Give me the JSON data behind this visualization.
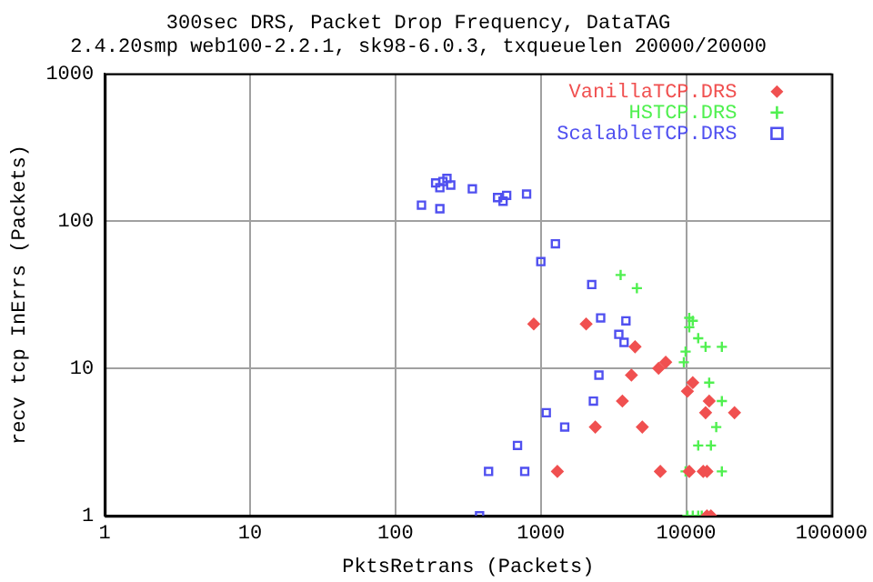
{
  "chart_data": {
    "type": "scatter",
    "title": "300sec DRS, Packet Drop Frequency, DataTAG",
    "subtitle": "2.4.20smp web100-2.2.1, sk98-6.0.3, txqueuelen 20000/20000",
    "xlabel": "PktsRetrans (Packets)",
    "ylabel": "recv tcp InErrs (Packets)",
    "log": "xy",
    "grid": true,
    "legend": "top right",
    "xlim": [
      1,
      100000
    ],
    "xticks": [
      1,
      10,
      100,
      1000,
      10000,
      100000
    ],
    "ylim": [
      1,
      1000
    ],
    "yticks": [
      1,
      10,
      100,
      1000
    ],
    "series": [
      {
        "name": "VanillaTCP.DRS",
        "color": "#f05050",
        "marker": "diamond",
        "x": [
          894,
          2050,
          4450,
          7230,
          6460,
          4200,
          11100,
          10200,
          14400,
          3640,
          13600,
          21500,
          2370,
          4990,
          1300,
          6640,
          10500,
          13100,
          13900,
          13900,
          14800
        ],
        "values": [
          20,
          20,
          14,
          11,
          10,
          9,
          8,
          7,
          6,
          6,
          5,
          5,
          4,
          4,
          2,
          2,
          2,
          2,
          2,
          1,
          1
        ]
      },
      {
        "name": "HSTCP.DRS",
        "color": "#50f050",
        "marker": "cross",
        "x": [
          3540,
          4580,
          10500,
          11100,
          10500,
          12100,
          13600,
          17600,
          9910,
          9640,
          14400,
          17600,
          16100,
          12100,
          14800,
          9910,
          17600,
          10200,
          11100,
          12100,
          12800
        ],
        "values": [
          43,
          35,
          22,
          21,
          19,
          16,
          14,
          14,
          13,
          11,
          8,
          6,
          4,
          3,
          3,
          2,
          2,
          1,
          1,
          1,
          1
        ]
      },
      {
        "name": "ScalableTCP.DRS",
        "color": "#5050f0",
        "marker": "square",
        "x": [
          151,
          189,
          212,
          226,
          240,
          202,
          202,
          338,
          504,
          582,
          550,
          798,
          1260,
          1000,
          2240,
          2580,
          3850,
          3440,
          3740,
          2510,
          2300,
          1090,
          1460,
          691,
          437,
          775,
          379
        ],
        "values": [
          128,
          181,
          185,
          194,
          175,
          168,
          121,
          165,
          144,
          149,
          136,
          152,
          70,
          53,
          37,
          22,
          21,
          17,
          15,
          9,
          6,
          5,
          4,
          3,
          2,
          2,
          1
        ]
      }
    ]
  }
}
